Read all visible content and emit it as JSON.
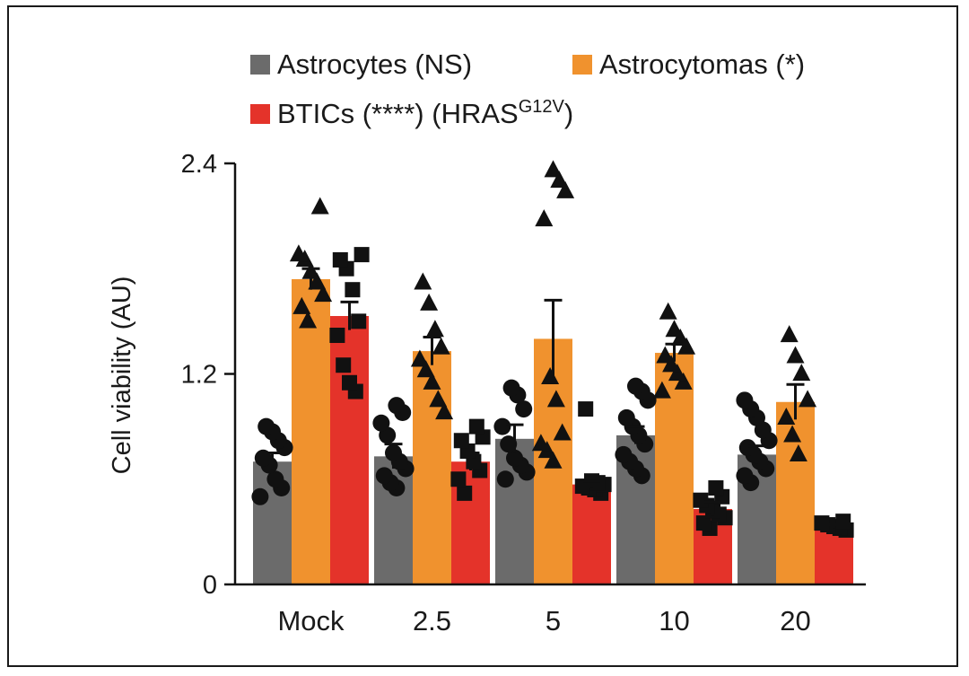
{
  "chart_data": {
    "type": "bar",
    "ylabel": "Cell viability (AU)",
    "xlabel": "",
    "ylim": [
      0,
      2.4
    ],
    "yticks": [
      0,
      1.2,
      2.4
    ],
    "categories": [
      "Mock",
      "2.5",
      "5",
      "10",
      "20"
    ],
    "legend_position": "top",
    "series": [
      {
        "name": "Astrocytes (NS)",
        "color": "#6b6b6b",
        "marker": "circle",
        "values": [
          0.7,
          0.73,
          0.83,
          0.85,
          0.74
        ],
        "errors": [
          0.05,
          0.07,
          0.08,
          0.05,
          0.05
        ],
        "points": [
          [
            0.5,
            0.55,
            0.6,
            0.68,
            0.72,
            0.78,
            0.82,
            0.87,
            0.9
          ],
          [
            0.55,
            0.58,
            0.62,
            0.66,
            0.7,
            0.75,
            0.85,
            0.92,
            0.98,
            1.02
          ],
          [
            0.6,
            0.64,
            0.68,
            0.72,
            0.8,
            0.9,
            1.0,
            1.08,
            1.12
          ],
          [
            0.62,
            0.66,
            0.7,
            0.74,
            0.8,
            0.85,
            0.9,
            0.95,
            1.05,
            1.1,
            1.13
          ],
          [
            0.58,
            0.62,
            0.66,
            0.7,
            0.74,
            0.78,
            0.82,
            0.88,
            0.95,
            1.0,
            1.05
          ]
        ]
      },
      {
        "name": "Astrocytomas (*)",
        "color": "#f0922e",
        "marker": "triangle",
        "values": [
          1.74,
          1.33,
          1.4,
          1.32,
          1.04
        ],
        "errors": [
          0.06,
          0.08,
          0.22,
          0.05,
          0.1
        ],
        "points": [
          [
            1.5,
            1.58,
            1.65,
            1.72,
            1.78,
            1.85,
            1.88,
            2.15
          ],
          [
            0.98,
            1.05,
            1.15,
            1.22,
            1.28,
            1.35,
            1.45,
            1.6,
            1.72
          ],
          [
            0.7,
            0.76,
            0.8,
            0.86,
            1.05,
            1.18,
            2.08,
            2.24,
            2.3,
            2.36
          ],
          [
            1.1,
            1.15,
            1.2,
            1.25,
            1.3,
            1.35,
            1.4,
            1.45,
            1.55
          ],
          [
            0.74,
            0.85,
            0.95,
            1.05,
            1.2,
            1.3,
            1.42
          ]
        ]
      },
      {
        "name": "BTICs (****) (HRAS",
        "name_sup": "G12V",
        "name_suffix": ")",
        "color": "#e4332a",
        "marker": "square",
        "values": [
          1.53,
          0.7,
          0.57,
          0.43,
          0.33
        ],
        "errors": [
          0.08,
          0.05,
          0.02,
          0.04,
          0.01
        ],
        "points": [
          [
            1.1,
            1.15,
            1.25,
            1.42,
            1.5,
            1.68,
            1.8,
            1.85,
            1.88
          ],
          [
            0.52,
            0.6,
            0.65,
            0.7,
            0.76,
            0.82,
            0.84,
            0.9
          ],
          [
            0.52,
            0.54,
            0.55,
            0.56,
            0.57,
            0.58,
            0.59,
            1.0
          ],
          [
            0.32,
            0.35,
            0.38,
            0.4,
            0.42,
            0.45,
            0.48,
            0.5,
            0.55
          ],
          [
            0.31,
            0.32,
            0.33,
            0.34,
            0.35,
            0.36
          ]
        ]
      }
    ]
  }
}
